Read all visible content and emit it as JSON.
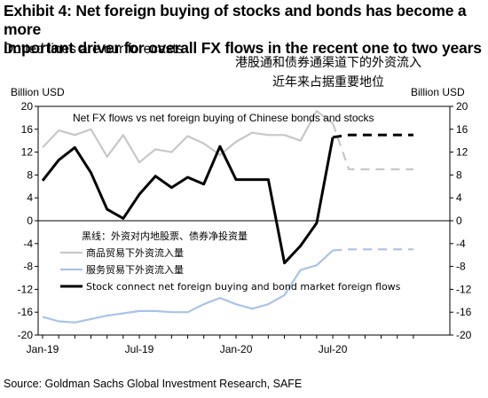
{
  "header": {
    "title_line1": "Exhibit 4: Net foreign buying of stocks and bonds has become a more",
    "title_line2": "important driver for overall FX flows in the recent one to two years",
    "subtitle": "Dotted lines are our forecasts",
    "cn_line1": "港股通和债券通渠道下的外资流入",
    "cn_line2": "近年来占据重要地位"
  },
  "source": "Source: Goldman Sachs Global Investment Research, SAFE",
  "chart_data": {
    "type": "line",
    "inner_title": "Net FX flows vs net foreign buying of Chinese bonds and stocks",
    "ylabel_left": "Billion USD",
    "ylabel_right": "Billion USD",
    "ylim": [
      -20,
      20
    ],
    "yticks": [
      -20,
      -16,
      -12,
      -8,
      -4,
      0,
      4,
      8,
      12,
      16,
      20
    ],
    "x_tick_labels": [
      "Jan-19",
      "Jul-19",
      "Jan-20",
      "Jul-20"
    ],
    "x_months": [
      "Jan-19",
      "Feb-19",
      "Mar-19",
      "Apr-19",
      "May-19",
      "Jun-19",
      "Jul-19",
      "Aug-19",
      "Sep-19",
      "Oct-19",
      "Nov-19",
      "Dec-19",
      "Jan-20",
      "Feb-20",
      "Mar-20",
      "Apr-20",
      "May-20",
      "Jun-20",
      "Jul-20",
      "Aug-20",
      "Sep-20",
      "Oct-20",
      "Nov-20",
      "Dec-20"
    ],
    "annotation": "黑线：外资对内地股票、债券净投资量",
    "legend_position": "bottom-left",
    "series": [
      {
        "name": "商品贸易下外资流入量",
        "color": "#c8c8c8",
        "style": "solid",
        "values": [
          12.8,
          15.8,
          15.0,
          16.0,
          11.2,
          15.0,
          10.2,
          12.5,
          12.0,
          14.8,
          13.5,
          11.5,
          13.8,
          15.4,
          15.0,
          15.0,
          14.0,
          19.2,
          17.0
        ],
        "forecast": {
          "start_index": 18,
          "values": [
            17.0,
            9.0,
            9.0,
            9.0,
            9.0,
            9.0
          ]
        }
      },
      {
        "name": "服务贸易下外资流入量",
        "color": "#a8c4e6",
        "style": "solid",
        "values": [
          -16.8,
          -17.6,
          -17.8,
          -17.2,
          -16.6,
          -16.2,
          -15.8,
          -15.8,
          -16.0,
          -16.0,
          -14.6,
          -13.5,
          -14.6,
          -15.4,
          -14.6,
          -13.0,
          -8.6,
          -7.8,
          -5.2
        ],
        "forecast": {
          "start_index": 18,
          "values": [
            -5.2,
            -5.0,
            -5.0,
            -5.0,
            -5.0,
            -5.0
          ]
        }
      },
      {
        "name": "Stock connect net foreign buying and bond market foreign flows",
        "color": "#000000",
        "style": "solid",
        "values": [
          7.0,
          10.6,
          12.8,
          8.4,
          2.0,
          0.4,
          4.6,
          7.8,
          5.8,
          7.6,
          6.4,
          13.0,
          7.2,
          7.2,
          7.2,
          -7.4,
          -4.4,
          -0.4,
          14.6
        ],
        "forecast": {
          "start_index": 18,
          "values": [
            14.6,
            15.0,
            15.0,
            15.0,
            15.0,
            15.0
          ]
        }
      }
    ]
  }
}
